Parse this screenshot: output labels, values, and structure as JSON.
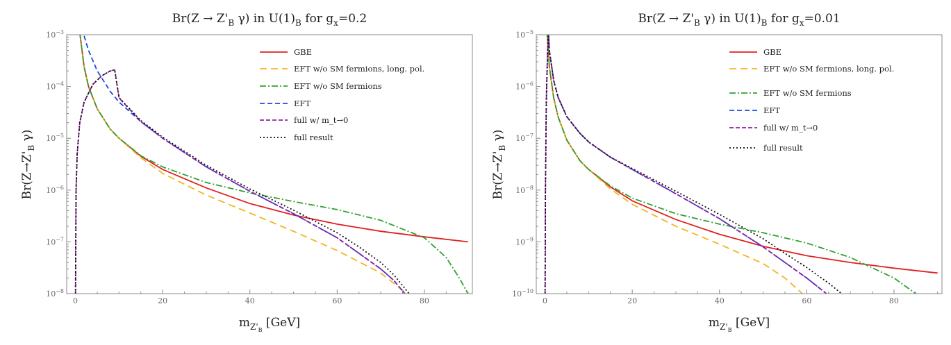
{
  "chart_data": [
    {
      "type": "line",
      "title": "Br(Z → Z'_B γ) in U(1)_B for g_x=0.2",
      "title_parts": {
        "pre": "Br(Z → Z'",
        "sub1": "B",
        "mid": " γ) in U(1)",
        "sub2": "B",
        "post1": " for g",
        "sub3": "x",
        "post2": "=0.2"
      },
      "xlabel": "m_{Z'_B} [GeV]",
      "xlabel_parts": {
        "main": "m",
        "sub": "Z'",
        "subsub": "B",
        "post": " [GeV]"
      },
      "ylabel": "Br(Z→Z'_B γ)",
      "ylabel_parts": {
        "pre": "Br(Z→Z'",
        "sub": "B",
        "post": " γ)"
      },
      "xlim": [
        -2,
        91
      ],
      "ylim_log10": [
        -8,
        -3
      ],
      "yscale": "log",
      "xticks": [
        0,
        20,
        40,
        60,
        80
      ],
      "xtick_labels": [
        "0",
        "20",
        "40",
        "60",
        "80"
      ],
      "yticks_log10": [
        -8,
        -7,
        -6,
        -5,
        -4,
        -3
      ],
      "ytick_labels": [
        {
          "b": "10",
          "e": "−8"
        },
        {
          "b": "10",
          "e": "−7"
        },
        {
          "b": "10",
          "e": "−6"
        },
        {
          "b": "10",
          "e": "−5"
        },
        {
          "b": "10",
          "e": "−4"
        },
        {
          "b": "10",
          "e": "−3"
        }
      ],
      "legend_position": "top-right",
      "series": [
        {
          "name": "GBE",
          "color": "#e02020",
          "dash": "",
          "x": [
            1,
            2,
            3,
            5,
            8,
            10,
            15,
            20,
            30,
            40,
            50,
            60,
            70,
            80,
            90
          ],
          "y": [
            0.0011,
            0.00024,
            0.0001,
            3.7e-05,
            1.5e-05,
            1e-05,
            4.5e-06,
            2.5e-06,
            1.1e-06,
            5.5e-07,
            3.3e-07,
            2.2e-07,
            1.6e-07,
            1.25e-07,
            1e-07
          ]
        },
        {
          "name": "EFT w/o SM fermions, long. pol.",
          "color": "#f2b51f",
          "dash": "10,6",
          "x": [
            1,
            2,
            3,
            5,
            8,
            10,
            15,
            20,
            30,
            40,
            50,
            60,
            70,
            76
          ],
          "y": [
            0.0011,
            0.00024,
            0.0001,
            3.7e-05,
            1.5e-05,
            1e-05,
            4.2e-06,
            2.1e-06,
            8e-07,
            3.6e-07,
            1.6e-07,
            6.8e-08,
            2.5e-08,
            1e-08
          ]
        },
        {
          "name": "EFT w/o SM fermions",
          "color": "#30a030",
          "dash": "9,3,2,3",
          "x": [
            1,
            2,
            3,
            5,
            8,
            10,
            15,
            20,
            30,
            40,
            50,
            60,
            70,
            80,
            85,
            88,
            90
          ],
          "y": [
            0.0011,
            0.00024,
            0.0001,
            3.7e-05,
            1.5e-05,
            1e-05,
            4.6e-06,
            2.8e-06,
            1.4e-06,
            8.8e-07,
            6e-07,
            4.2e-07,
            2.6e-07,
            1.2e-07,
            5e-08,
            2e-08,
            1e-08
          ]
        },
        {
          "name": "EFT",
          "color": "#2048e0",
          "dash": "7,4",
          "x": [
            2,
            3,
            5,
            8,
            10,
            15,
            20,
            30,
            40,
            50,
            60,
            65,
            70,
            73,
            75.5
          ],
          "y": [
            0.00095,
            0.0005,
            0.0002,
            8e-05,
            5e-05,
            2.1e-05,
            1e-05,
            2.8e-06,
            9.5e-07,
            3.5e-07,
            1.2e-07,
            6e-08,
            3e-08,
            1.8e-08,
            1e-08
          ]
        },
        {
          "name": "full w/ m_t→0",
          "color": "#9020a0",
          "dash": "6,3",
          "x": [
            0.02,
            0.15,
            0.4,
            1,
            2,
            4,
            6,
            8,
            9,
            10,
            15,
            20,
            30,
            40,
            50,
            60,
            65,
            70,
            73,
            75.5
          ],
          "y": [
            1e-08,
            1e-06,
            5e-06,
            2e-05,
            5e-05,
            0.00011,
            0.00016,
            0.0002,
            0.00021,
            6e-05,
            2.1e-05,
            1e-05,
            2.8e-06,
            9.5e-07,
            3.5e-07,
            1.2e-07,
            6e-08,
            3e-08,
            1.8e-08,
            1e-08
          ]
        },
        {
          "name": "full result",
          "color": "#111111",
          "dash": "2,3",
          "x": [
            0.02,
            0.15,
            0.4,
            1,
            2,
            4,
            6,
            8,
            9,
            10,
            15,
            20,
            30,
            40,
            50,
            60,
            65,
            70,
            73,
            76.5
          ],
          "y": [
            1e-08,
            1e-06,
            5e-06,
            2e-05,
            5e-05,
            0.00011,
            0.00016,
            0.0002,
            0.00021,
            6.1e-05,
            2.2e-05,
            1.05e-05,
            3e-06,
            1.05e-06,
            4.1e-07,
            1.5e-07,
            8e-08,
            4e-08,
            2.3e-08,
            1e-08
          ]
        }
      ]
    },
    {
      "type": "line",
      "title": "Br(Z → Z'_B γ) in U(1)_B for g_x=0.01",
      "title_parts": {
        "pre": "Br(Z → Z'",
        "sub1": "B",
        "mid": " γ) in U(1)",
        "sub2": "B",
        "post1": " for g",
        "sub3": "x",
        "post2": "=0.01"
      },
      "xlabel": "m_{Z'_B} [GeV]",
      "xlabel_parts": {
        "main": "m",
        "sub": "Z'",
        "subsub": "B",
        "post": " [GeV]"
      },
      "ylabel": "Br(Z→Z'_B γ)",
      "ylabel_parts": {
        "pre": "Br(Z→Z'",
        "sub": "B",
        "post": " γ)"
      },
      "xlim": [
        -2,
        91
      ],
      "ylim_log10": [
        -10,
        -5
      ],
      "yscale": "log",
      "xticks": [
        0,
        20,
        40,
        60,
        80
      ],
      "xtick_labels": [
        "0",
        "20",
        "40",
        "60",
        "80"
      ],
      "yticks_log10": [
        -10,
        -9,
        -8,
        -7,
        -6,
        -5
      ],
      "ytick_labels": [
        {
          "b": "10",
          "e": "−10"
        },
        {
          "b": "10",
          "e": "−9"
        },
        {
          "b": "10",
          "e": "−8"
        },
        {
          "b": "10",
          "e": "−7"
        },
        {
          "b": "10",
          "e": "−6"
        },
        {
          "b": "10",
          "e": "−5"
        }
      ],
      "legend_position": "top-right",
      "series": [
        {
          "name": "GBE",
          "color": "#e02020",
          "dash": "",
          "x": [
            0.5,
            1,
            2,
            3,
            5,
            8,
            10,
            15,
            20,
            30,
            40,
            50,
            60,
            70,
            80,
            90
          ],
          "y": [
            1e-05,
            2.4e-06,
            6e-07,
            2.6e-07,
            9.2e-08,
            3.7e-08,
            2.5e-08,
            1.15e-08,
            6.2e-09,
            2.7e-09,
            1.4e-09,
            8.2e-10,
            5.4e-10,
            4e-10,
            3.1e-10,
            2.5e-10
          ]
        },
        {
          "name": "EFT w/o SM fermions, long. pol.",
          "color": "#f2b51f",
          "dash": "10,6",
          "x": [
            0.5,
            1,
            2,
            3,
            5,
            8,
            10,
            15,
            20,
            30,
            40,
            50,
            55,
            59
          ],
          "y": [
            1e-05,
            2.4e-06,
            6e-07,
            2.6e-07,
            9.2e-08,
            3.7e-08,
            2.5e-08,
            1.05e-08,
            5.3e-09,
            2e-09,
            9e-10,
            3.8e-10,
            2e-10,
            1e-10
          ]
        },
        {
          "name": "EFT w/o SM fermions",
          "color": "#30a030",
          "dash": "9,3,2,3",
          "x": [
            0.5,
            1,
            2,
            3,
            5,
            8,
            10,
            15,
            20,
            30,
            40,
            50,
            60,
            70,
            80,
            85
          ],
          "y": [
            1e-05,
            2.4e-06,
            6e-07,
            2.6e-07,
            9.2e-08,
            3.7e-08,
            2.5e-08,
            1.2e-08,
            7e-09,
            3.5e-09,
            2.2e-09,
            1.5e-09,
            9.5e-10,
            5e-10,
            2e-10,
            1e-10
          ]
        },
        {
          "name": "EFT",
          "color": "#2048e0",
          "dash": "7,4",
          "x": [
            0.8,
            1,
            2,
            3,
            5,
            8,
            10,
            15,
            20,
            30,
            40,
            50,
            55,
            60,
            64.5
          ],
          "y": [
            1e-05,
            5e-06,
            1.3e-06,
            6.2e-07,
            2.6e-07,
            1.25e-07,
            8.5e-08,
            4.3e-08,
            2.5e-08,
            8.5e-09,
            2.8e-09,
            8e-10,
            4e-10,
            2e-10,
            1e-10
          ]
        },
        {
          "name": "full w/ m_t→0",
          "color": "#9020a0",
          "dash": "6,3",
          "x": [
            0.02,
            0.1,
            0.3,
            0.6,
            0.8,
            1,
            2,
            3,
            5,
            8,
            10,
            15,
            20,
            30,
            40,
            50,
            55,
            60,
            64.5
          ],
          "y": [
            1e-10,
            1e-08,
            5e-07,
            5e-06,
            1e-05,
            5e-06,
            1.3e-06,
            6.2e-07,
            2.6e-07,
            1.25e-07,
            8.5e-08,
            4.3e-08,
            2.5e-08,
            8.5e-09,
            2.8e-09,
            8e-10,
            4e-10,
            2e-10,
            1e-10
          ]
        },
        {
          "name": "full result",
          "color": "#111111",
          "dash": "2,3",
          "x": [
            0.02,
            0.1,
            0.3,
            0.6,
            0.8,
            1,
            2,
            3,
            5,
            8,
            10,
            15,
            20,
            30,
            40,
            50,
            55,
            60,
            65,
            68
          ],
          "y": [
            1e-10,
            1e-08,
            5e-07,
            5e-06,
            1e-05,
            5e-06,
            1.3e-06,
            6.2e-07,
            2.6e-07,
            1.25e-07,
            8.5e-08,
            4.3e-08,
            2.6e-08,
            9.5e-09,
            3.4e-09,
            1.15e-09,
            6e-10,
            3.2e-10,
            1.6e-10,
            1e-10
          ]
        }
      ]
    }
  ]
}
